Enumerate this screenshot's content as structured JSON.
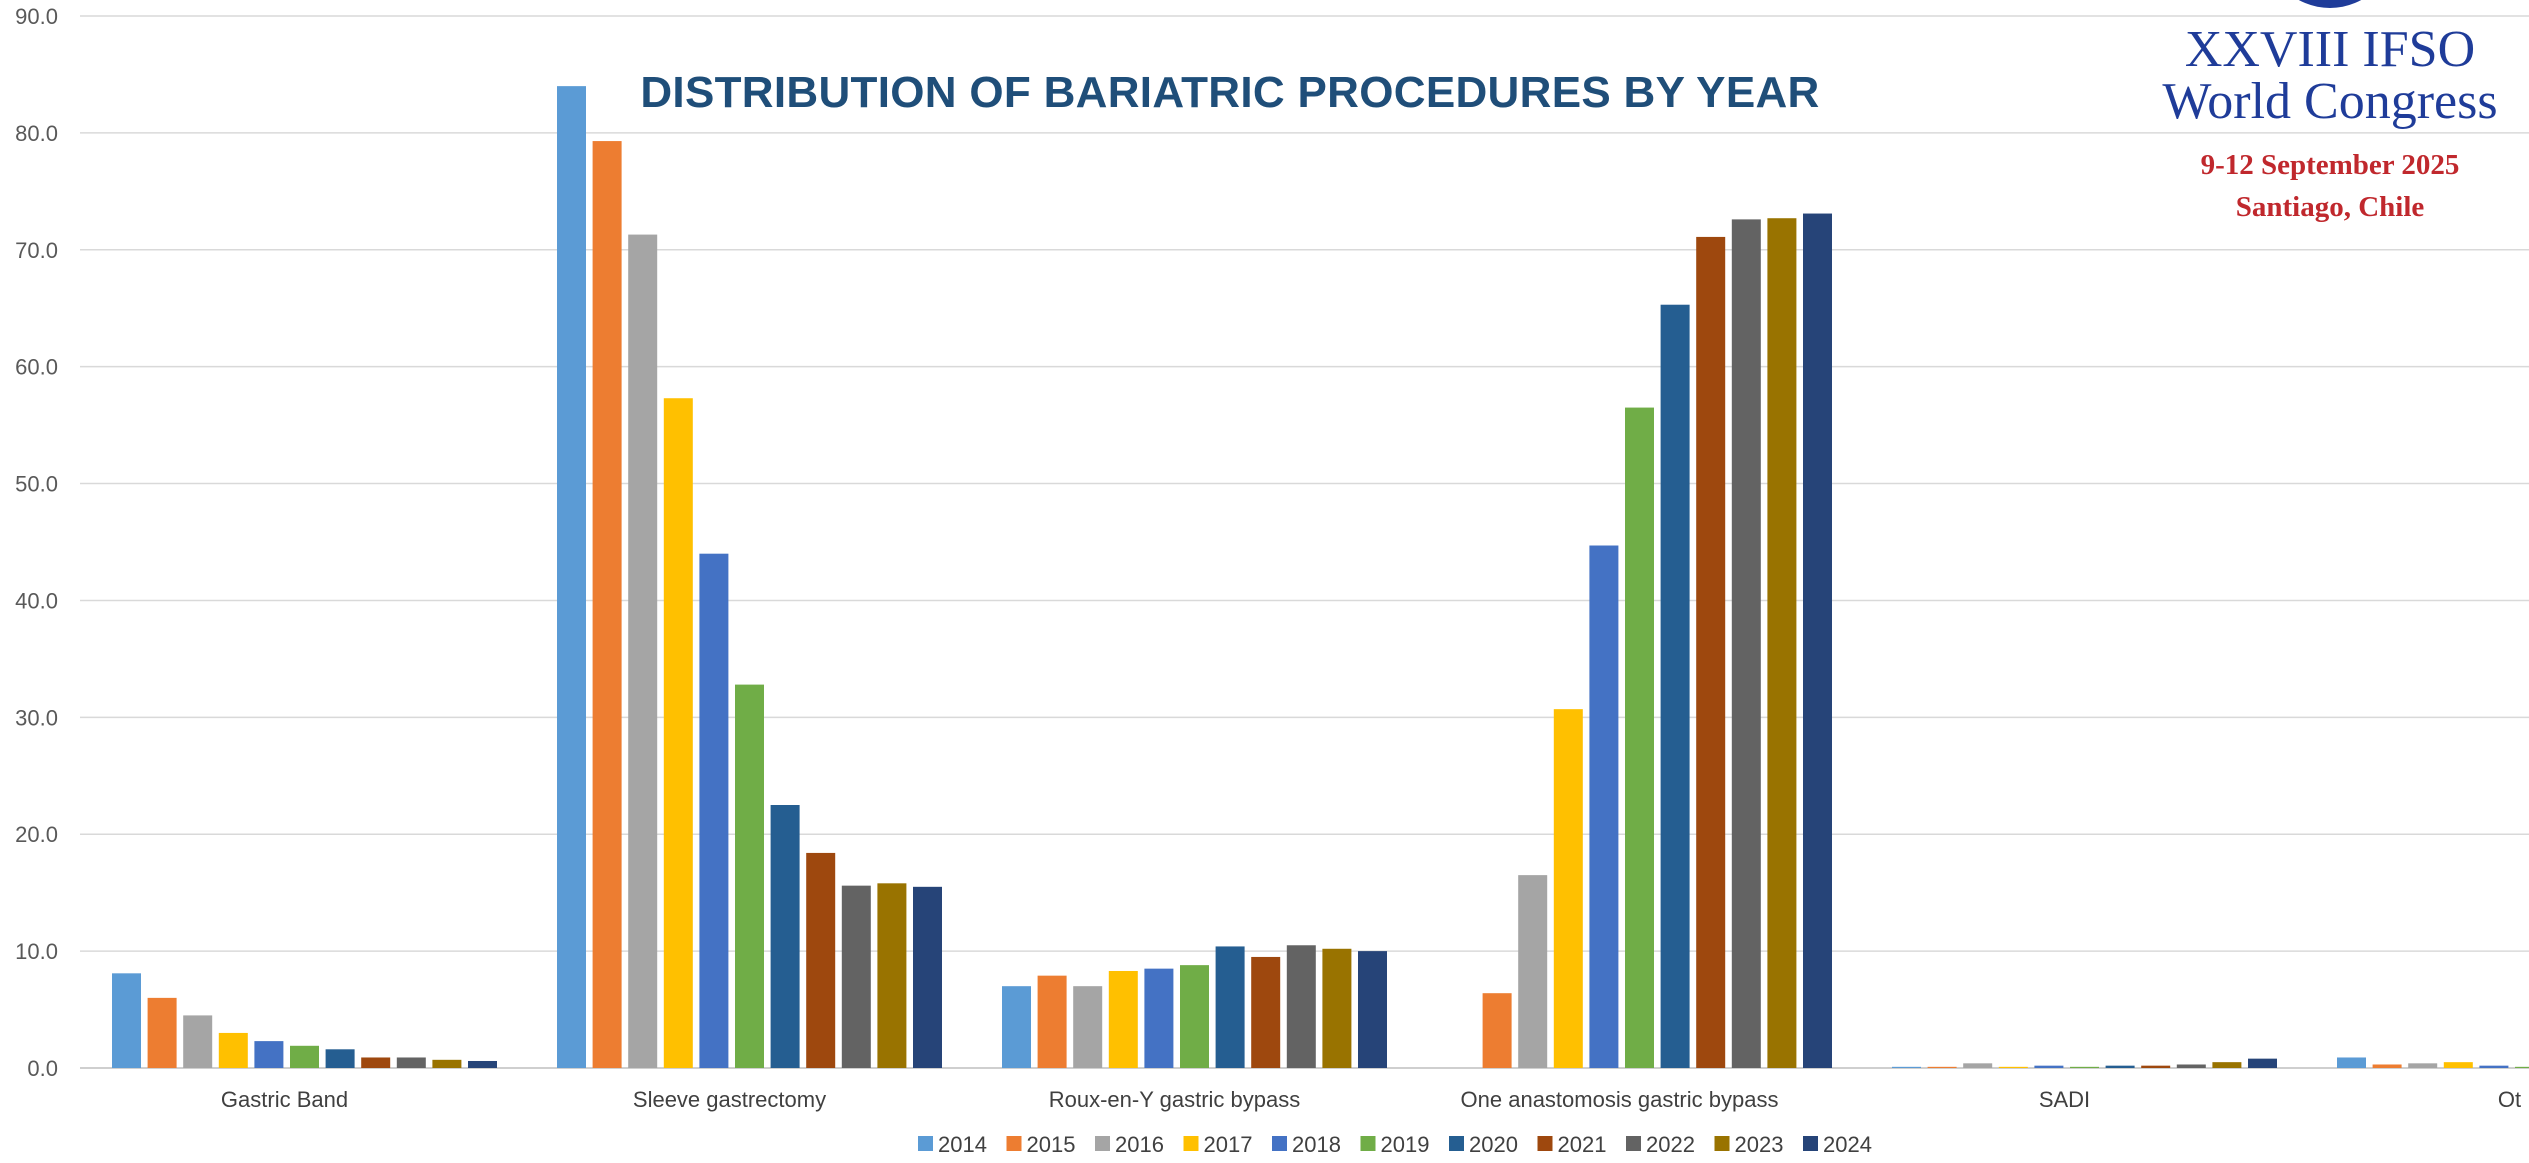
{
  "header": {
    "title": "DISTRIBUTION OF BARIATRIC PROCEDURES BY YEAR",
    "congress_line1": "XXVIII IFSO",
    "congress_line2": "World Congress",
    "congress_dates": "9-12 September 2025",
    "congress_place": "Santiago, Chile"
  },
  "chart_data": {
    "type": "bar",
    "title": "DISTRIBUTION OF BARIATRIC PROCEDURES BY YEAR",
    "xlabel": "",
    "ylabel": "",
    "ylim": [
      0,
      90
    ],
    "y_ticks": [
      "0.0",
      "10.0",
      "20.0",
      "30.0",
      "40.0",
      "50.0",
      "60.0",
      "70.0",
      "80.0",
      "90.0"
    ],
    "grid": true,
    "legend_position": "bottom",
    "categories": [
      "Gastric Band",
      "Sleeve gastrectomy",
      "Roux-en-Y gastric bypass",
      "One anastomosis gastric bypass",
      "SADI",
      "Ot"
    ],
    "series": [
      {
        "name": "2014",
        "color": "#5b9bd5",
        "values": [
          8.1,
          84.0,
          7.0,
          0.0,
          0.1,
          0.9
        ]
      },
      {
        "name": "2015",
        "color": "#ed7d31",
        "values": [
          6.0,
          79.3,
          7.9,
          6.4,
          0.1,
          0.3
        ]
      },
      {
        "name": "2016",
        "color": "#a5a5a5",
        "values": [
          4.5,
          71.3,
          7.0,
          16.5,
          0.4,
          0.4
        ]
      },
      {
        "name": "2017",
        "color": "#ffc000",
        "values": [
          3.0,
          57.3,
          8.3,
          30.7,
          0.1,
          0.5
        ]
      },
      {
        "name": "2018",
        "color": "#4472c4",
        "values": [
          2.3,
          44.0,
          8.5,
          44.7,
          0.2,
          0.2
        ]
      },
      {
        "name": "2019",
        "color": "#70ad47",
        "values": [
          1.9,
          32.8,
          8.8,
          56.5,
          0.1,
          0.1
        ]
      },
      {
        "name": "2020",
        "color": "#255e91",
        "values": [
          1.6,
          22.5,
          10.4,
          65.3,
          0.2,
          0.1
        ]
      },
      {
        "name": "2021",
        "color": "#9e480e",
        "values": [
          0.9,
          18.4,
          9.5,
          71.1,
          0.2,
          0.1
        ]
      },
      {
        "name": "2022",
        "color": "#636363",
        "values": [
          0.9,
          15.6,
          10.5,
          72.6,
          0.3,
          0.1
        ]
      },
      {
        "name": "2023",
        "color": "#997300",
        "values": [
          0.7,
          15.8,
          10.2,
          72.7,
          0.5,
          0.1
        ]
      },
      {
        "name": "2024",
        "color": "#264478",
        "values": [
          0.6,
          15.5,
          10.0,
          73.1,
          0.8,
          0.1
        ]
      }
    ]
  }
}
